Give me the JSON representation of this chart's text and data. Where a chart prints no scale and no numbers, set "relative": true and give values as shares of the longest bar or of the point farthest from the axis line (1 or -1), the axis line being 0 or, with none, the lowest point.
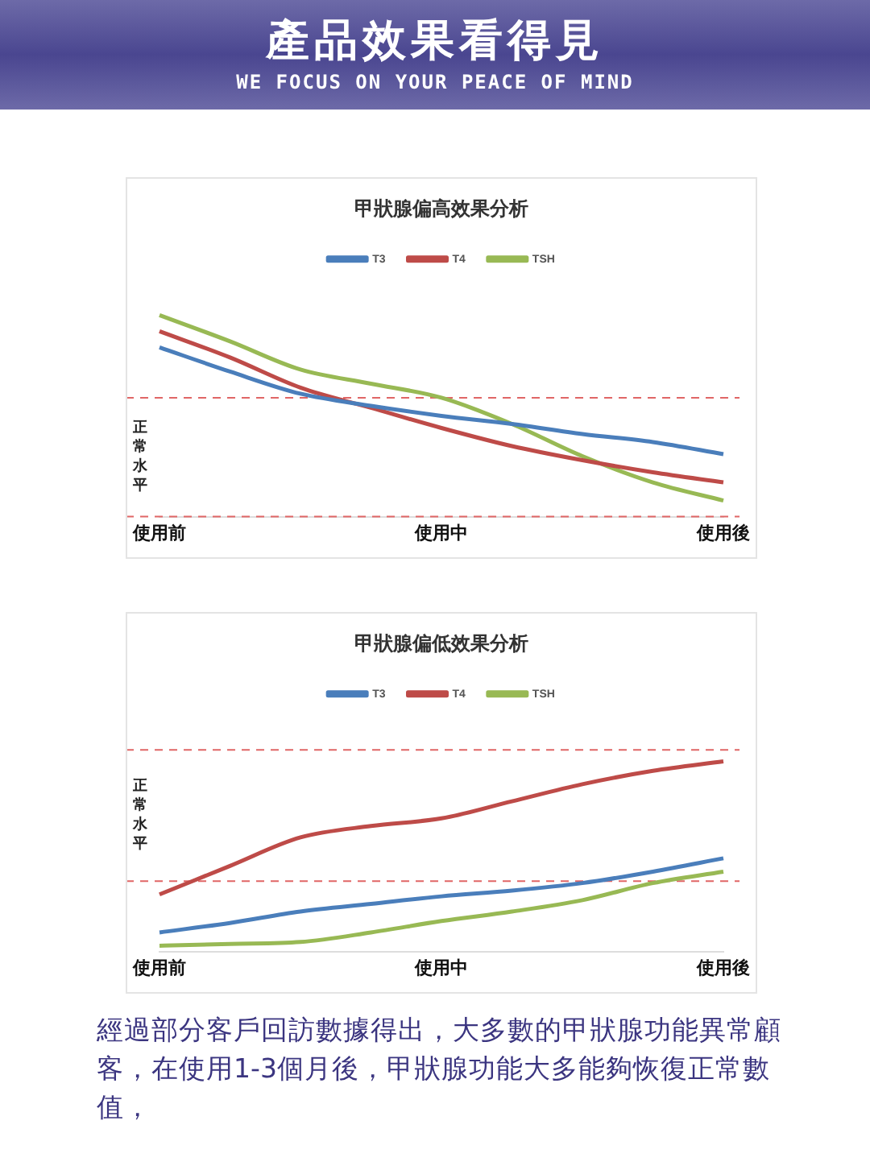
{
  "chart_data": [
    {
      "type": "other",
      "title": "產品效果看得見",
      "subtitle": "WE FOCUS ON YOUR PEACE OF MIND"
    },
    {
      "type": "line",
      "title": "甲狀腺偏高效果分析",
      "relative": true,
      "legend": "top",
      "categories": [
        "使用前",
        null,
        null,
        null,
        "使用中",
        null,
        null,
        null,
        "使用後"
      ],
      "series": [
        {
          "name": "T3",
          "color": "#4a7ebb",
          "values": [
            0.84,
            0.72,
            0.61,
            0.55,
            0.5,
            0.46,
            0.41,
            0.37,
            0.31
          ]
        },
        {
          "name": "T4",
          "color": "#be4b48",
          "values": [
            0.92,
            0.79,
            0.64,
            0.54,
            0.44,
            0.35,
            0.28,
            0.22,
            0.17
          ]
        },
        {
          "name": "TSH",
          "color": "#98b954",
          "values": [
            1,
            0.87,
            0.73,
            0.66,
            0.59,
            0.46,
            0.3,
            0.17,
            0.08
          ]
        }
      ],
      "ref_lines": [
        {
          "axis": "y",
          "value": 0.59,
          "color": "#e06666",
          "line_style": "dashed"
        },
        {
          "axis": "y",
          "value": 0,
          "color": "#e06666",
          "line_style": "dashed"
        }
      ],
      "annotations": [
        "正常水平"
      ]
    },
    {
      "type": "line",
      "title": "甲狀腺偏低效果分析",
      "relative": true,
      "legend": "top",
      "categories": [
        "使用前",
        null,
        null,
        null,
        "使用中",
        null,
        null,
        null,
        "使用後"
      ],
      "series": [
        {
          "name": "T3",
          "color": "#4a7ebb",
          "values": [
            0.1,
            0.15,
            0.21,
            0.25,
            0.29,
            0.32,
            0.36,
            0.42,
            0.49
          ]
        },
        {
          "name": "T4",
          "color": "#be4b48",
          "values": [
            0.3,
            0.45,
            0.6,
            0.66,
            0.7,
            0.79,
            0.88,
            0.95,
            1
          ]
        },
        {
          "name": "TSH",
          "color": "#98b954",
          "values": [
            0.03,
            0.04,
            0.05,
            0.1,
            0.16,
            0.21,
            0.27,
            0.36,
            0.42
          ]
        }
      ],
      "ref_lines": [
        {
          "axis": "y",
          "value": 1.06,
          "color": "#e06666",
          "line_style": "dashed"
        },
        {
          "axis": "y",
          "value": 0.37,
          "color": "#e06666",
          "line_style": "dashed"
        }
      ],
      "annotations": [
        "正常水平"
      ]
    },
    {
      "type": "other",
      "annotations": [
        "經過部分客戶回訪數據得出，大多數的甲狀腺功能異常顧客，在使用1-3個月後，甲狀腺功能大多能夠恢復正常數值，"
      ]
    }
  ]
}
